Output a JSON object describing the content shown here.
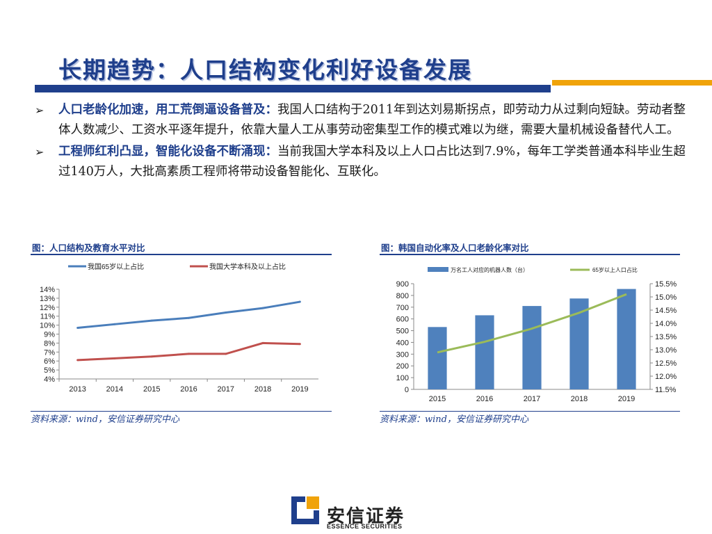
{
  "title": "长期趋势：人口结构变化利好设备发展",
  "bullets": [
    {
      "lead": "人口老龄化加速，用工荒倒逼设备普及：",
      "text": "我国人口结构于2011年到达刘易斯拐点，即劳动力从过剩向短缺。劳动者整体人数减少、工资水平逐年提升，依靠大量人工从事劳动密集型工作的模式难以为继，需要大量机械设备替代人工。"
    },
    {
      "lead": "工程师红利凸显，智能化设备不断涌现：",
      "text": "当前我国大学本科及以上人口占比达到7.9%，每年工学类普通本科毕业生超过140万人，大批高素质工程师将带动设备智能化、互联化。"
    }
  ],
  "chart1": {
    "title": "图：人口结构及教育水平对比",
    "source": "资料来源：wind，安信证券研究中心"
  },
  "chart2": {
    "title": "图：韩国自动化率及人口老龄化率对比",
    "source": "资料来源：wind，安信证券研究中心"
  },
  "logo": {
    "name": "安信证券",
    "english": "ESSENCE SECURITIES"
  },
  "chart_data": [
    {
      "type": "line",
      "title": "",
      "x": [
        "2013",
        "2014",
        "2015",
        "2016",
        "2017",
        "2018",
        "2019"
      ],
      "series": [
        {
          "name": "我国65岁以上占比",
          "color": "#4a7ebb",
          "values": [
            9.7,
            10.1,
            10.5,
            10.8,
            11.4,
            11.9,
            12.6
          ]
        },
        {
          "name": "我国大学本科及以上占比",
          "color": "#c0504d",
          "values": [
            6.1,
            6.3,
            6.5,
            6.8,
            6.8,
            8.0,
            7.9
          ]
        }
      ],
      "ylim": [
        4,
        14
      ],
      "yticks": [
        "4%",
        "5%",
        "6%",
        "7%",
        "8%",
        "9%",
        "10%",
        "11%",
        "12%",
        "13%",
        "14%"
      ],
      "legend": "top"
    },
    {
      "type": "bar",
      "title": "",
      "categories": [
        "2015",
        "2016",
        "2017",
        "2018",
        "2019"
      ],
      "series": [
        {
          "name": "万名工人对应的机器人数（台）",
          "type": "bar",
          "axis": "left",
          "color": "#4f81bd",
          "values": [
            531,
            631,
            710,
            774,
            855
          ]
        },
        {
          "name": "65岁以上人口占比",
          "type": "line",
          "axis": "right",
          "color": "#9bbb59",
          "values": [
            12.9,
            13.3,
            13.8,
            14.4,
            15.1
          ]
        }
      ],
      "ylim_left": [
        0,
        900
      ],
      "yticks_left": [
        "0",
        "100",
        "200",
        "300",
        "400",
        "500",
        "600",
        "700",
        "800",
        "900"
      ],
      "ylim_right": [
        11.5,
        15.5
      ],
      "yticks_right": [
        "11.5%",
        "12.0%",
        "12.5%",
        "13.0%",
        "13.5%",
        "14.0%",
        "14.5%",
        "15.0%",
        "15.5%"
      ],
      "legend": "top"
    }
  ]
}
